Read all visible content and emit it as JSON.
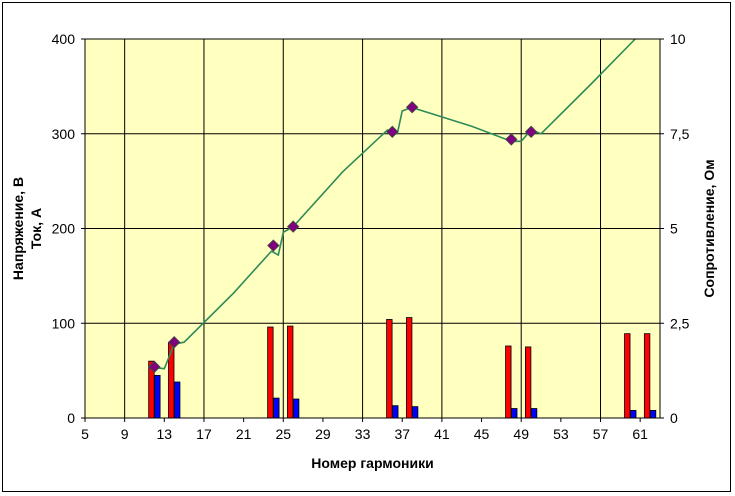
{
  "chart_data": {
    "type": "bar",
    "xlabel": "Номер гармоники",
    "ylabel_left_line1": "Напряжение, В",
    "ylabel_left_line2": "Ток, А",
    "ylabel_right": "Сопротивление, Ом",
    "xlim": [
      5,
      63
    ],
    "ylim_left": [
      0,
      400
    ],
    "ylim_right": [
      0,
      10
    ],
    "x_ticks": [
      "5",
      "9",
      "13",
      "17",
      "21",
      "25",
      "29",
      "33",
      "37",
      "41",
      "45",
      "49",
      "53",
      "57",
      "61"
    ],
    "y_left_ticks": [
      "0",
      "100",
      "200",
      "300",
      "400"
    ],
    "y_right_ticks": [
      "0",
      "2,5",
      "5",
      "7,5",
      "10"
    ],
    "grid": true,
    "legend": "none",
    "colors": {
      "plot_bg": "#ffffc0",
      "voltage": "#ff0000",
      "current": "#0000ff",
      "line": "#2e8b57",
      "marker": "#800080"
    },
    "series": [
      {
        "kind": "bar",
        "color": "#ff0000",
        "x": [
          11.7,
          13.7,
          23.7,
          25.7,
          35.7,
          37.7,
          47.7,
          49.7,
          59.7,
          61.7
        ],
        "values": [
          60,
          80,
          96,
          97,
          104,
          106,
          76,
          75,
          89,
          89
        ]
      },
      {
        "kind": "bar",
        "color": "#0000ff",
        "x": [
          12.3,
          14.3,
          24.3,
          26.3,
          36.3,
          38.3,
          48.3,
          50.3,
          60.3,
          62.3
        ],
        "values": [
          45,
          38,
          21,
          20,
          13,
          12,
          10,
          10,
          8,
          8
        ]
      },
      {
        "kind": "line",
        "axis": "right",
        "x": [
          11.5,
          13,
          14,
          15,
          20,
          23.8,
          24.5,
          25,
          26,
          31,
          35.5,
          36.5,
          37,
          38,
          38.5,
          44,
          48,
          49,
          50,
          51,
          56,
          60.5
        ],
        "values": [
          1.35,
          1.3,
          1.95,
          2.0,
          3.3,
          4.4,
          4.3,
          4.9,
          5.05,
          6.5,
          7.6,
          7.5,
          8.1,
          8.2,
          8.15,
          7.7,
          7.3,
          7.3,
          7.6,
          7.5,
          8.8,
          10.0
        ]
      },
      {
        "kind": "scatter",
        "axis": "right",
        "x": [
          12,
          14,
          24,
          26,
          36,
          38,
          48,
          50
        ],
        "values": [
          1.35,
          2.0,
          4.55,
          5.05,
          7.55,
          8.2,
          7.35,
          7.55
        ]
      }
    ]
  }
}
